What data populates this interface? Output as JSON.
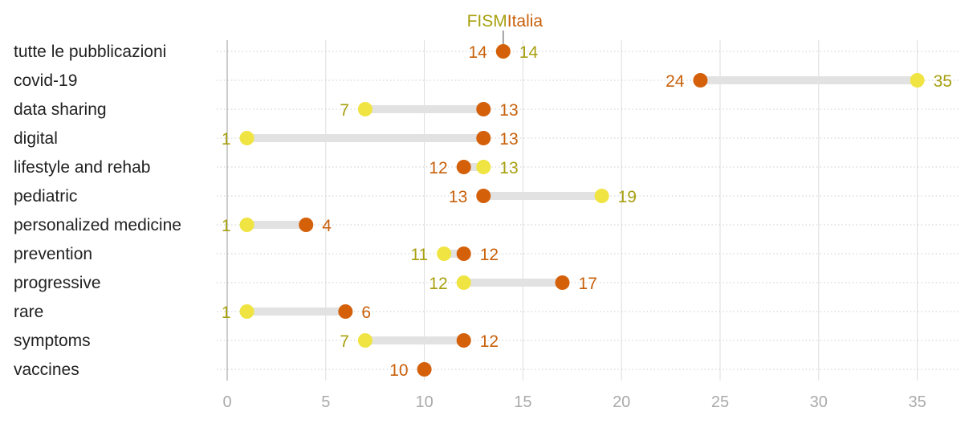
{
  "chart_data": {
    "type": "dumbbell",
    "title": "",
    "xlabel": "",
    "ylabel": "",
    "xlim": [
      0,
      37
    ],
    "xticks": [
      0,
      5,
      10,
      15,
      20,
      25,
      30,
      35
    ],
    "grid": true,
    "legend_placement": "top",
    "colors": {
      "FISM": "#d4600a",
      "Italia": "#f0e442",
      "FISM_text": "#c8600a",
      "Italia_text": "#a8a010"
    },
    "categories": [
      "tutte le pubblicazioni",
      "covid-19",
      "data sharing",
      "digital",
      "lifestyle and rehab",
      "pediatric",
      "personalized medicine",
      "prevention",
      "progressive",
      "rare",
      "symptoms",
      "vaccines"
    ],
    "series": [
      {
        "name": "FISM",
        "values": [
          14,
          24,
          13,
          13,
          12,
          13,
          4,
          12,
          17,
          6,
          12,
          10
        ]
      },
      {
        "name": "Italia",
        "values": [
          14,
          35,
          7,
          1,
          13,
          19,
          1,
          11,
          12,
          1,
          7,
          null
        ]
      }
    ]
  }
}
